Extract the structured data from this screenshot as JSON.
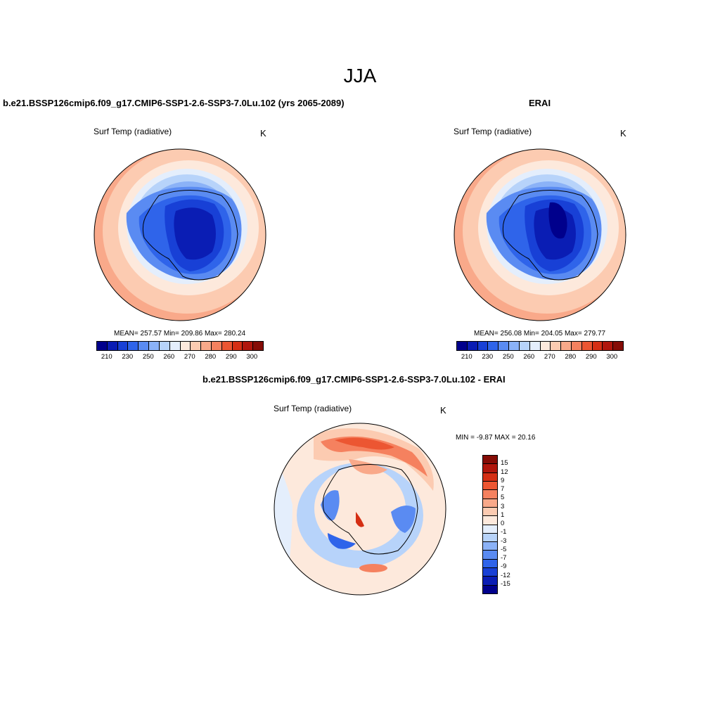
{
  "title": "JJA",
  "panels": {
    "model": {
      "title": "b.e21.BSSP126cmip6.f09_g17.CMIP6-SSP1-2.6-SSP3-7.0Lu.102 (yrs 2065-2089)",
      "variable": "Surf Temp (radiative)",
      "units": "K",
      "stats": "MEAN= 257.57  Min= 209.86  Max= 280.24"
    },
    "obs": {
      "title": "ERAI",
      "variable": "Surf Temp (radiative)",
      "units": "K",
      "stats": "MEAN= 256.08  Min= 204.05  Max= 279.77"
    },
    "diff": {
      "title": "b.e21.BSSP126cmip6.f09_g17.CMIP6-SSP1-2.6-SSP3-7.0Lu.102 - ERAI",
      "variable": "Surf Temp (radiative)",
      "units": "K",
      "minmax": "MIN =  -9.87 MAX =  20.16"
    }
  },
  "colorbar_abs": {
    "colors": [
      "#00008c",
      "#0a1db4",
      "#1840d6",
      "#2f64ea",
      "#5a8bf2",
      "#8bb2f7",
      "#b7d3fa",
      "#e4eefc",
      "#fde9dc",
      "#fccbb1",
      "#f9a98a",
      "#f5815f",
      "#ec5632",
      "#d52f14",
      "#b0160c",
      "#850c06"
    ],
    "ticks": [
      "210",
      "230",
      "250",
      "260",
      "270",
      "280",
      "290",
      "300"
    ]
  },
  "colorbar_diff": {
    "colors": [
      "#850c06",
      "#b0160c",
      "#d52f14",
      "#ec5632",
      "#f5815f",
      "#f9a98a",
      "#fccbb1",
      "#fde9dc",
      "#e4eefc",
      "#b7d3fa",
      "#8bb2f7",
      "#5a8bf2",
      "#2f64ea",
      "#1840d6",
      "#0a1db4",
      "#00008c"
    ],
    "ticks": [
      "15",
      "12",
      "9",
      "7",
      "5",
      "3",
      "1",
      "0",
      "-1",
      "-3",
      "-5",
      "-7",
      "-9",
      "-12",
      "-15"
    ]
  }
}
